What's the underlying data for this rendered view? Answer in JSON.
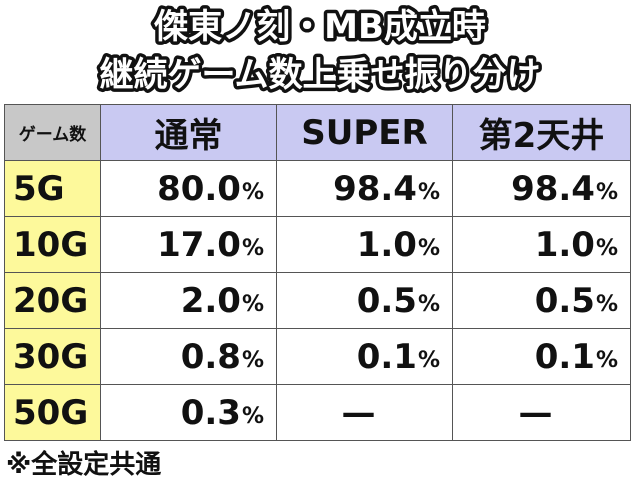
{
  "header": {
    "title": [
      "傑東ノ刻・MB成立時",
      "継続ゲーム数上乗せ振り分け"
    ]
  },
  "table": {
    "columns": [
      "ゲーム数",
      "通常",
      "SUPER",
      "第2天井"
    ],
    "rows": [
      [
        "5G",
        {
          "num": "80.0",
          "unit": "%"
        },
        {
          "num": "98.4",
          "unit": "%"
        },
        {
          "num": "98.4",
          "unit": "%"
        }
      ],
      [
        "10G",
        {
          "num": "17.0",
          "unit": "%"
        },
        {
          "num": "1.0",
          "unit": "%"
        },
        {
          "num": "1.0",
          "unit": "%"
        }
      ],
      [
        "20G",
        {
          "num": "2.0",
          "unit": "%"
        },
        {
          "num": "0.5",
          "unit": "%"
        },
        {
          "num": "0.5",
          "unit": "%"
        }
      ],
      [
        "30G",
        {
          "num": "0.8",
          "unit": "%"
        },
        {
          "num": "0.1",
          "unit": "%"
        },
        {
          "num": "0.1",
          "unit": "%"
        }
      ],
      [
        "50G",
        {
          "num": "0.3",
          "unit": "%"
        },
        "—",
        "—"
      ]
    ]
  },
  "footnote": "※全設定共通"
}
